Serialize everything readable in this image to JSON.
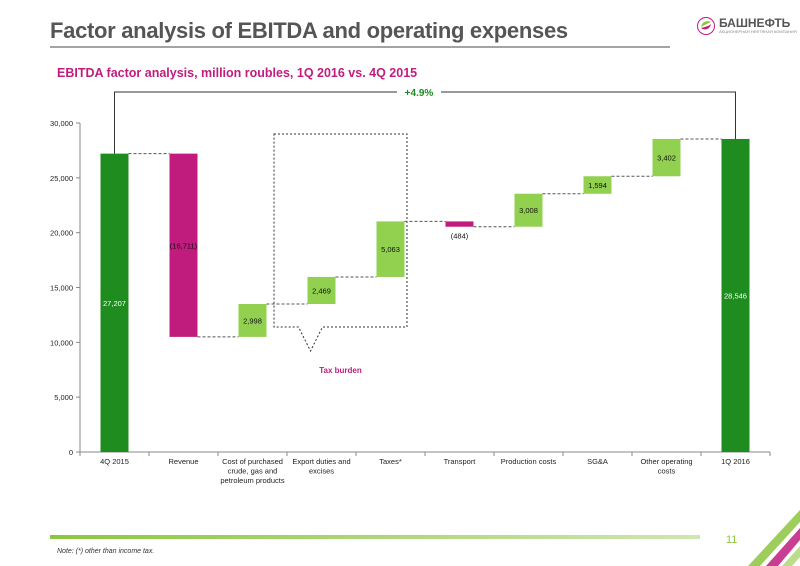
{
  "slide": {
    "title": "Factor analysis of EBITDA and operating expenses",
    "subtitle": "EBITDA factor analysis, million roubles, 1Q 2016 vs. 4Q 2015",
    "page_number": "11",
    "note": "Note: (*) other than income tax."
  },
  "logo": {
    "name": "БАШНЕФТЬ",
    "tagline": "АКЦИОНЕРНАЯ НЕФТЯНАЯ КОМПАНИЯ",
    "icon": "bashneft-leaf-icon"
  },
  "colors": {
    "total": "#1e8c1e",
    "increase": "#92d050",
    "decrease": "#c01c7e",
    "title": "#555555",
    "accent": "#c01c7e",
    "footer": "#8cc63f"
  },
  "chart_data": {
    "type": "bar",
    "subtype": "waterfall",
    "categories": [
      "4Q 2015",
      "Revenue",
      "Cost of purchased crude, gas and petroleum products",
      "Export duties and excises",
      "Taxes*",
      "Transport",
      "Production costs",
      "SG&A",
      "Other operating costs",
      "1Q 2016"
    ],
    "bars": [
      {
        "kind": "total",
        "start": 0,
        "end": 27207,
        "label": "27,207"
      },
      {
        "kind": "decrease",
        "start": 27207,
        "end": 10496,
        "label": "(16,711)"
      },
      {
        "kind": "increase",
        "start": 10496,
        "end": 13494,
        "label": "2,998"
      },
      {
        "kind": "increase",
        "start": 13494,
        "end": 15963,
        "label": "2,469"
      },
      {
        "kind": "increase",
        "start": 15963,
        "end": 21026,
        "label": "5,063"
      },
      {
        "kind": "decrease",
        "start": 21026,
        "end": 20542,
        "label": "(484)"
      },
      {
        "kind": "increase",
        "start": 20542,
        "end": 23550,
        "label": "3,008"
      },
      {
        "kind": "increase",
        "start": 23550,
        "end": 25144,
        "label": "1,594"
      },
      {
        "kind": "increase",
        "start": 25144,
        "end": 28546,
        "label": "3,402"
      },
      {
        "kind": "total",
        "start": 0,
        "end": 28546,
        "label": "28,546"
      }
    ],
    "ylim": [
      0,
      30000
    ],
    "yticks": [
      0,
      5000,
      10000,
      15000,
      20000,
      25000,
      30000
    ],
    "ytick_labels": [
      "0",
      "5,000",
      "10,000",
      "15,000",
      "20,000",
      "25,000",
      "30,000"
    ],
    "change_label": "+4.9%",
    "callout_label": "Tax burden",
    "grid": false
  }
}
